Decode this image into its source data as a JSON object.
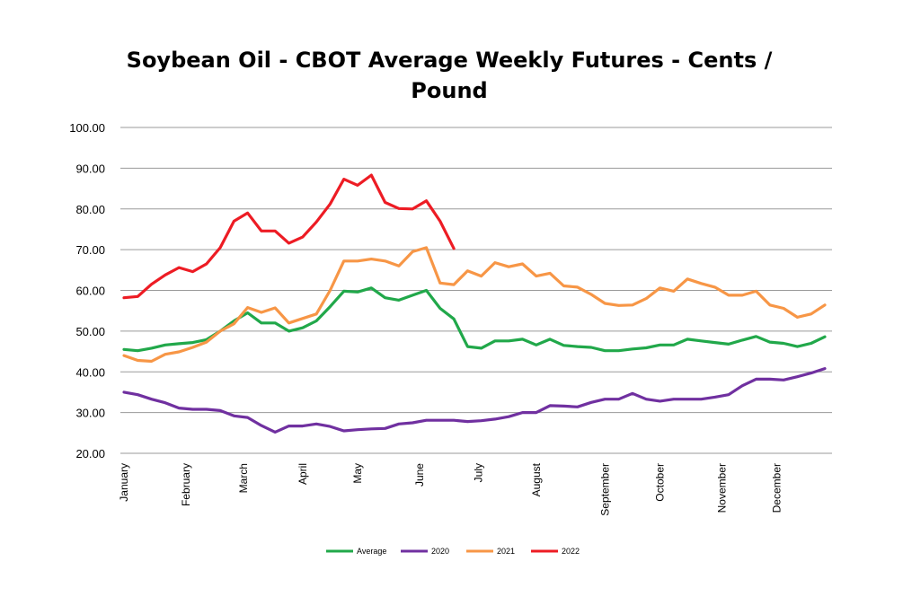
{
  "chart_data": {
    "type": "line",
    "title": "Soybean Oil - CBOT Average Weekly Futures - Cents / Pound",
    "xlabel": "",
    "ylabel": "",
    "ylim": [
      20,
      100
    ],
    "yticks": [
      "20.00",
      "30.00",
      "40.00",
      "50.00",
      "60.00",
      "70.00",
      "80.00",
      "90.00",
      "100.00"
    ],
    "grid": true,
    "legend_position": "bottom",
    "weeks": 52,
    "months": [
      {
        "label": "January",
        "week": 1
      },
      {
        "label": "February",
        "week": 5.5
      },
      {
        "label": "March",
        "week": 9.7
      },
      {
        "label": "April",
        "week": 14
      },
      {
        "label": "May",
        "week": 18
      },
      {
        "label": "June",
        "week": 22.5
      },
      {
        "label": "July",
        "week": 26.8
      },
      {
        "label": "August",
        "week": 31
      },
      {
        "label": "September",
        "week": 36
      },
      {
        "label": "October",
        "week": 40
      },
      {
        "label": "November",
        "week": 44.5
      },
      {
        "label": "December",
        "week": 48.5
      }
    ],
    "series": [
      {
        "name": "Average",
        "color": "#21a84a",
        "values": [
          45.5,
          45.2,
          45.8,
          46.6,
          46.9,
          47.2,
          47.9,
          50.0,
          52.5,
          54.5,
          52.0,
          52.0,
          50.0,
          50.8,
          52.5,
          56.0,
          59.8,
          59.6,
          60.6,
          58.2,
          57.6,
          58.8,
          60.0,
          55.6,
          53.0,
          46.2,
          45.8,
          47.6,
          47.6,
          48.0,
          46.6,
          48.0,
          46.5,
          46.2,
          46.0,
          45.2,
          45.2,
          45.6,
          45.9,
          46.6,
          46.6,
          48.0,
          47.6,
          47.2,
          46.8,
          47.8,
          48.7,
          47.3,
          47.0,
          46.2,
          47.0,
          48.6
        ]
      },
      {
        "name": "2020",
        "color": "#7030a0",
        "values": [
          35.0,
          34.4,
          33.3,
          32.4,
          31.1,
          30.8,
          30.8,
          30.5,
          29.2,
          28.8,
          26.8,
          25.2,
          26.7,
          26.7,
          27.2,
          26.6,
          25.5,
          25.8,
          26.0,
          26.1,
          27.2,
          27.5,
          28.1,
          28.1,
          28.1,
          27.8,
          28.0,
          28.4,
          29.0,
          30.0,
          30.0,
          31.7,
          31.6,
          31.4,
          32.5,
          33.3,
          33.3,
          34.7,
          33.3,
          32.8,
          33.3,
          33.3,
          33.3,
          33.8,
          34.4,
          36.6,
          38.2,
          38.2,
          38.0,
          38.8,
          39.7,
          40.8
        ]
      },
      {
        "name": "2021",
        "color": "#f79646",
        "values": [
          44.0,
          42.8,
          42.6,
          44.3,
          44.9,
          46.0,
          47.3,
          50.0,
          51.8,
          55.8,
          54.6,
          55.7,
          52.0,
          53.1,
          54.2,
          60.0,
          67.2,
          67.2,
          67.7,
          67.2,
          66.0,
          69.5,
          70.5,
          61.8,
          61.4,
          64.8,
          63.5,
          66.8,
          65.8,
          66.5,
          63.5,
          64.2,
          61.1,
          60.8,
          59.0,
          56.8,
          56.3,
          56.4,
          58.0,
          60.6,
          59.8,
          62.8,
          61.7,
          60.8,
          58.8,
          58.8,
          59.8,
          56.4,
          55.6,
          53.4,
          54.2,
          56.4
        ]
      },
      {
        "name": "2022",
        "color": "#ed1c24",
        "values": [
          58.2,
          58.5,
          61.5,
          63.8,
          65.6,
          64.6,
          66.5,
          70.5,
          77.0,
          79.0,
          74.6,
          74.6,
          71.6,
          73.1,
          76.8,
          81.2,
          87.3,
          85.8,
          88.3,
          81.6,
          80.1,
          80.0,
          82.0,
          77.0,
          70.3
        ]
      }
    ]
  }
}
